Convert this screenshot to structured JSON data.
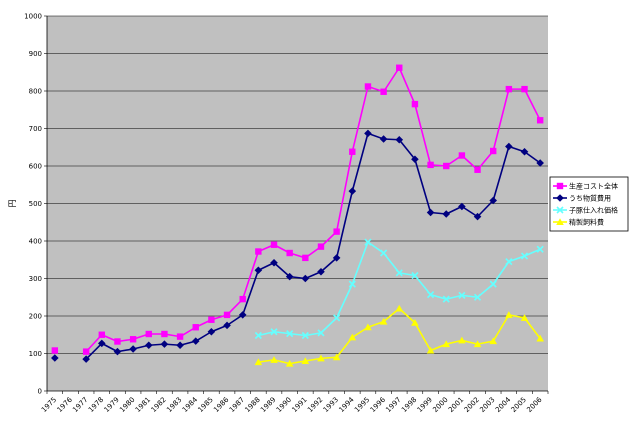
{
  "chart_data": {
    "type": "line",
    "ylabel": "円",
    "ylim": [
      0,
      1000
    ],
    "yticks": [
      0,
      100,
      200,
      300,
      400,
      500,
      600,
      700,
      800,
      900,
      1000
    ],
    "x": [
      1975,
      1976,
      1977,
      1978,
      1979,
      1980,
      1981,
      1982,
      1983,
      1984,
      1985,
      1986,
      1987,
      1988,
      1989,
      1990,
      1991,
      1992,
      1993,
      1994,
      1995,
      1996,
      1997,
      1998,
      1999,
      2000,
      2001,
      2002,
      2003,
      2004,
      2005,
      2006
    ],
    "grid": true,
    "legend_position": "right",
    "plot_background": "#c0c0c0",
    "series": [
      {
        "name": "生産コスト全体",
        "color": "#ff00ff",
        "marker": "square",
        "values": [
          108,
          null,
          105,
          150,
          132,
          138,
          152,
          152,
          145,
          170,
          190,
          203,
          245,
          372,
          390,
          368,
          355,
          385,
          425,
          638,
          812,
          798,
          862,
          765,
          603,
          600,
          628,
          590,
          640,
          805,
          805,
          722
        ]
      },
      {
        "name": "うち物質費用",
        "color": "#000080",
        "marker": "diamond",
        "values": [
          88,
          null,
          85,
          127,
          105,
          112,
          122,
          125,
          122,
          133,
          158,
          175,
          203,
          322,
          342,
          305,
          300,
          318,
          355,
          533,
          687,
          672,
          670,
          618,
          476,
          472,
          492,
          465,
          508,
          652,
          638,
          608
        ]
      },
      {
        "name": "子豚仕入れ価格",
        "color": "#66ffff",
        "marker": "x",
        "values": [
          null,
          null,
          null,
          null,
          null,
          null,
          null,
          null,
          null,
          null,
          null,
          null,
          null,
          148,
          158,
          153,
          148,
          155,
          195,
          285,
          397,
          368,
          315,
          308,
          257,
          245,
          255,
          250,
          285,
          345,
          360,
          378
        ]
      },
      {
        "name": "精製飼料費",
        "color": "#ffff00",
        "marker": "triangle",
        "values": [
          null,
          null,
          null,
          null,
          null,
          null,
          null,
          null,
          null,
          null,
          null,
          null,
          null,
          77,
          83,
          73,
          80,
          87,
          90,
          143,
          170,
          185,
          220,
          182,
          108,
          125,
          135,
          125,
          133,
          203,
          195,
          140
        ]
      }
    ]
  }
}
